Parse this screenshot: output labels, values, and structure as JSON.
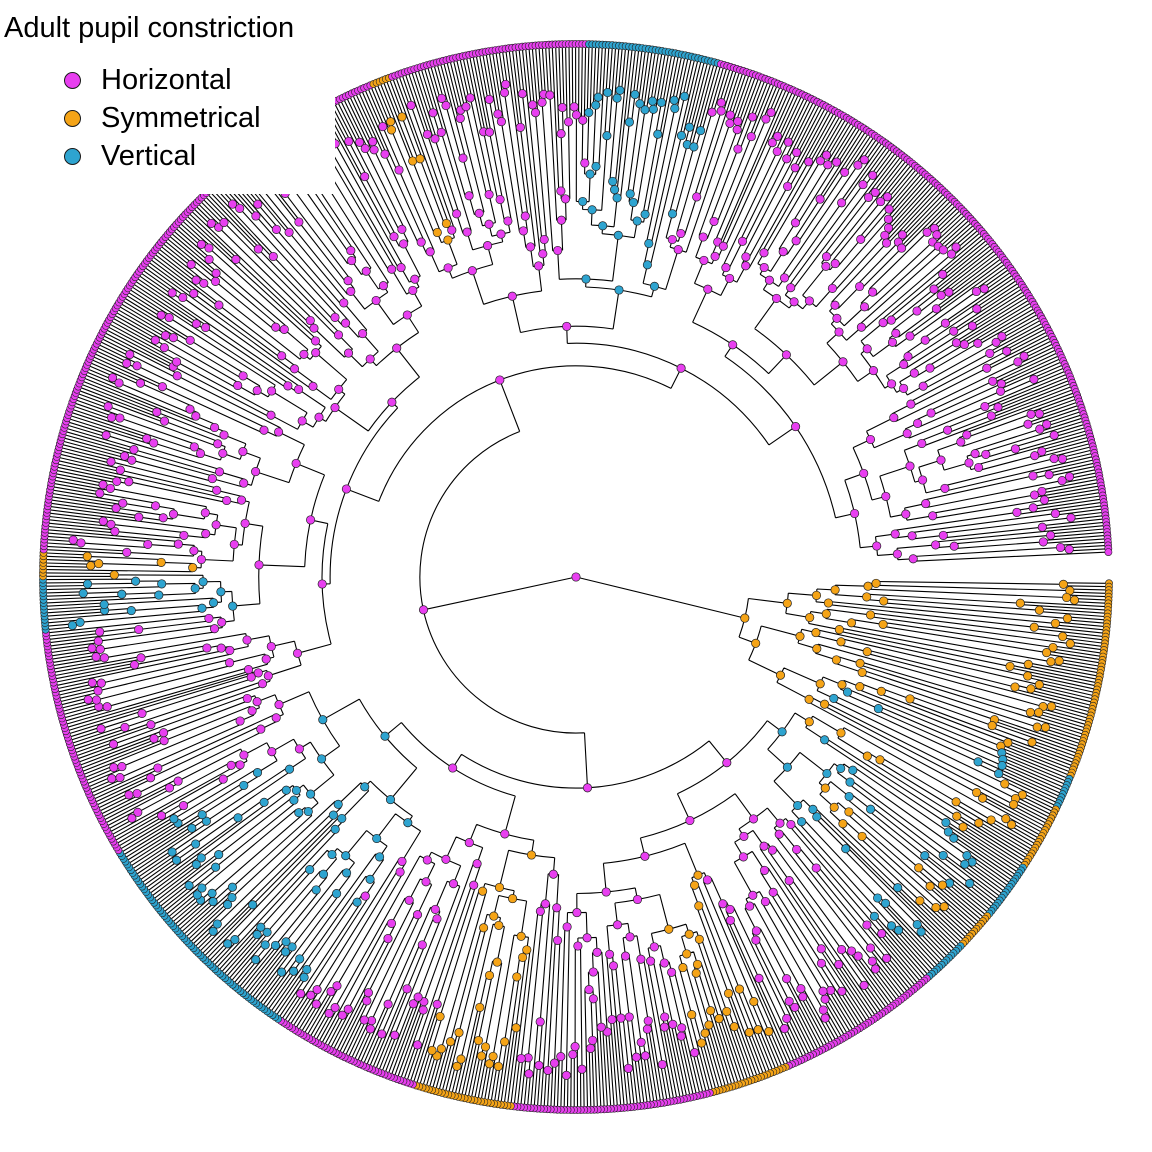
{
  "legend": {
    "title": "Adult pupil constriction",
    "items": [
      {
        "label": "Horizontal",
        "color": "#e83ff0"
      },
      {
        "label": "Symmetrical",
        "color": "#f5a417"
      },
      {
        "label": "Vertical",
        "color": "#2ea4d0"
      }
    ]
  },
  "tree": {
    "layout": "circular-fan",
    "open_gap": "right, just below the root horizon",
    "tip_state_sequence": [
      {
        "state": "Symmetrical",
        "tips": 60
      },
      {
        "state": "Vertical",
        "tips": 10
      },
      {
        "state": "Symmetrical",
        "tips": 20
      },
      {
        "state": "Vertical",
        "tips": 18
      },
      {
        "state": "Symmetrical",
        "tips": 12
      },
      {
        "state": "Vertical",
        "tips": 14
      },
      {
        "state": "Horizontal",
        "tips": 50
      },
      {
        "state": "Symmetrical",
        "tips": 24
      },
      {
        "state": "Horizontal",
        "tips": 60
      },
      {
        "state": "Symmetrical",
        "tips": 30
      },
      {
        "state": "Horizontal",
        "tips": 45
      },
      {
        "state": "Vertical",
        "tips": 70
      },
      {
        "state": "Horizontal",
        "tips": 70
      },
      {
        "state": "Vertical",
        "tips": 16
      },
      {
        "state": "Symmetrical",
        "tips": 8
      },
      {
        "state": "Horizontal",
        "tips": 180
      },
      {
        "state": "Symmetrical",
        "tips": 6
      },
      {
        "state": "Horizontal",
        "tips": 60
      },
      {
        "state": "Vertical",
        "tips": 40
      },
      {
        "state": "Horizontal",
        "tips": 200
      }
    ]
  }
}
